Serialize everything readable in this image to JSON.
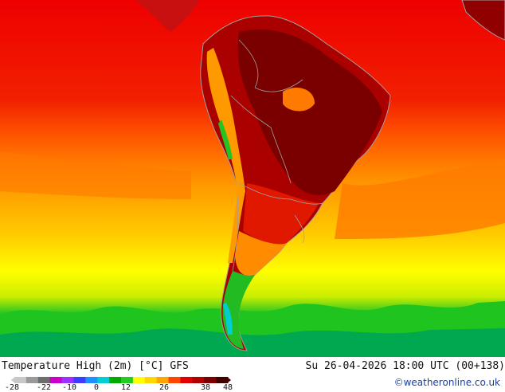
{
  "map": {
    "title": "Temperature High (2m) [°C] GFS",
    "run_info": "Su 26-04-2026 18:00 UTC (00+138)",
    "credit": "©weatheronline.co.uk",
    "region": "South America",
    "land_outline_color": "#a0a0a0",
    "colorbar": {
      "tick_labels": [
        "-28",
        "-22",
        "-10",
        "0",
        "12",
        "26",
        "38",
        "48"
      ],
      "colors": [
        "#c8c8c8",
        "#9a9a9a",
        "#6e6e6e",
        "#cc00cc",
        "#9b30ff",
        "#3c3cff",
        "#1e90ff",
        "#00ced1",
        "#00aa00",
        "#22cc22",
        "#ffff00",
        "#ffd700",
        "#ffa500",
        "#ff4500",
        "#e00000",
        "#b00000",
        "#7a0000",
        "#400000"
      ]
    }
  }
}
